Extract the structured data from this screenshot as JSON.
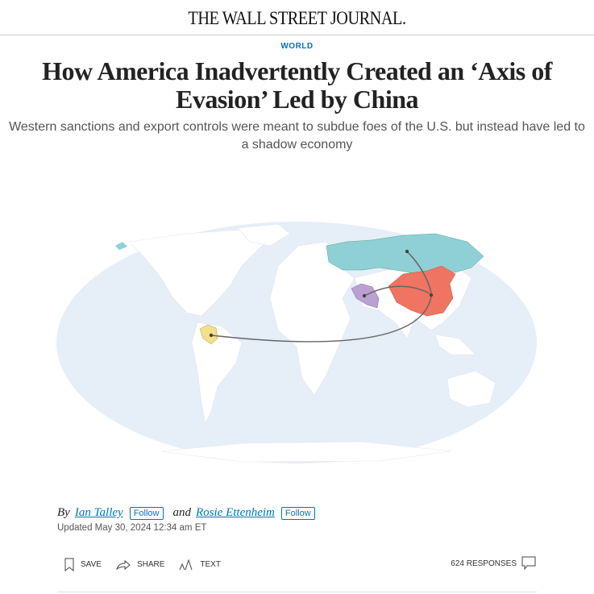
{
  "masthead": {
    "logo": "THE WALL STREET JOURNAL."
  },
  "article": {
    "section": "WORLD",
    "headline": "How America Inadvertently Created an ‘Axis of Evasion’ Led by China",
    "dek": "Western sanctions and export controls were meant to subdue foes of the U.S. but instead have led to a shadow economy",
    "byline": {
      "by": "By",
      "author1": "Ian Talley",
      "and": "and",
      "author2": "Rosie Ettenheim",
      "follow": "Follow"
    },
    "updated": "Updated May 30, 2024 12:34 am ET"
  },
  "map": {
    "colors": {
      "ocean": "#e6eef8",
      "land": "#ffffff",
      "russia": "#8ed0d6",
      "china": "#f07462",
      "iran": "#b9a2d2",
      "venezuela": "#f3e08d",
      "arrow": "#666666"
    }
  },
  "toolbar": {
    "save": "SAVE",
    "share": "SHARE",
    "text": "TEXT",
    "responses": "624 RESPONSES",
    "icons": [
      "bookmark-icon",
      "share-arrow-icon",
      "text-size-icon",
      "comment-icon"
    ]
  }
}
